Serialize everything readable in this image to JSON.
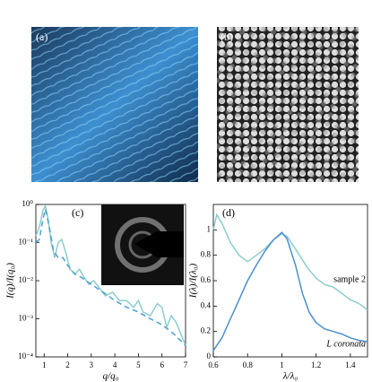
{
  "images": [
    {
      "label": "(a)"
    },
    {
      "label": "(b)"
    }
  ],
  "chart_data": [
    {
      "type": "line",
      "label": "(c)",
      "xlabel": "q/q₀",
      "ylabel": "I(q)/I(q₀)",
      "log_y": true,
      "xlim": [
        0.65,
        7
      ],
      "ylim": [
        0.0001,
        1
      ],
      "xticks": [
        1,
        2,
        3,
        4,
        5,
        6,
        7
      ],
      "yticks": [
        {
          "value": 0.0001,
          "label": "10⁻⁴"
        },
        {
          "value": 0.001,
          "label": "10⁻³"
        },
        {
          "value": 0.01,
          "label": "10⁻²"
        },
        {
          "value": 0.1,
          "label": "10⁻¹"
        },
        {
          "value": 1,
          "label": "10⁰"
        }
      ],
      "series": [
        {
          "color": "#8dcccc",
          "dash": false,
          "x": [
            0.65,
            0.8,
            0.95,
            1.05,
            1.15,
            1.3,
            1.45,
            1.6,
            1.75,
            1.9,
            2.1,
            2.3,
            2.5,
            2.7,
            2.9,
            3.1,
            3.3,
            3.6,
            3.9,
            4.2,
            4.5,
            4.8,
            5.0,
            5.2,
            5.5,
            5.8,
            6.0,
            6.2,
            6.4,
            6.6,
            6.8,
            7
          ],
          "values": [
            0.15,
            0.25,
            0.7,
            0.9,
            0.5,
            0.1,
            0.04,
            0.1,
            0.12,
            0.06,
            0.02,
            0.015,
            0.02,
            0.012,
            0.008,
            0.01,
            0.007,
            0.004,
            0.005,
            0.003,
            0.003,
            0.002,
            0.003,
            0.0015,
            0.0012,
            0.0025,
            0.002,
            0.0006,
            0.0012,
            0.0008,
            0.0004,
            0.0002
          ]
        },
        {
          "color": "#4a9fd0",
          "dash": true,
          "x": [
            0.65,
            0.8,
            0.95,
            1.05,
            1.2,
            1.4,
            1.6,
            1.8,
            2.0,
            2.3,
            2.6,
            3.0,
            3.5,
            4,
            4.5,
            5,
            5.5,
            6,
            6.5,
            7
          ],
          "values": [
            0.1,
            0.12,
            0.4,
            0.75,
            0.3,
            0.06,
            0.04,
            0.04,
            0.025,
            0.015,
            0.012,
            0.008,
            0.005,
            0.003,
            0.002,
            0.0015,
            0.001,
            0.0007,
            0.0004,
            0.0002
          ]
        }
      ]
    },
    {
      "type": "line",
      "label": "(d)",
      "xlabel": "λ/λ₀",
      "ylabel": "I(λ)/I(λ₀)",
      "log_y": false,
      "xlim": [
        0.6,
        1.5
      ],
      "ylim": [
        0,
        1.2
      ],
      "xticks": [
        0.6,
        0.8,
        {
          "value": 1,
          "label": "1"
        },
        1.2,
        1.4
      ],
      "yticks": [
        0,
        0.2,
        0.4,
        0.6,
        0.8,
        1
      ],
      "series": [
        {
          "name": "sample 2",
          "color": "#8dcccc",
          "dash": false,
          "x": [
            0.6,
            0.62,
            0.65,
            0.7,
            0.75,
            0.8,
            0.85,
            0.9,
            0.95,
            1.0,
            1.03,
            1.08,
            1.15,
            1.2,
            1.25,
            1.3,
            1.35,
            1.4,
            1.45,
            1.5
          ],
          "values": [
            1.0,
            1.12,
            1.05,
            0.9,
            0.8,
            0.75,
            0.8,
            0.85,
            0.92,
            0.97,
            0.95,
            0.85,
            0.7,
            0.62,
            0.57,
            0.55,
            0.5,
            0.45,
            0.42,
            0.37
          ]
        },
        {
          "name": "L coronata",
          "color": "#4a8fd0",
          "dash": false,
          "x": [
            0.6,
            0.65,
            0.7,
            0.75,
            0.8,
            0.85,
            0.9,
            0.95,
            1.0,
            1.03,
            1.08,
            1.12,
            1.16,
            1.2,
            1.25,
            1.3,
            1.35,
            1.4,
            1.45,
            1.5
          ],
          "values": [
            0.05,
            0.15,
            0.3,
            0.45,
            0.6,
            0.72,
            0.83,
            0.92,
            0.98,
            0.93,
            0.72,
            0.5,
            0.35,
            0.27,
            0.22,
            0.2,
            0.18,
            0.15,
            0.13,
            0.12
          ]
        }
      ]
    }
  ]
}
